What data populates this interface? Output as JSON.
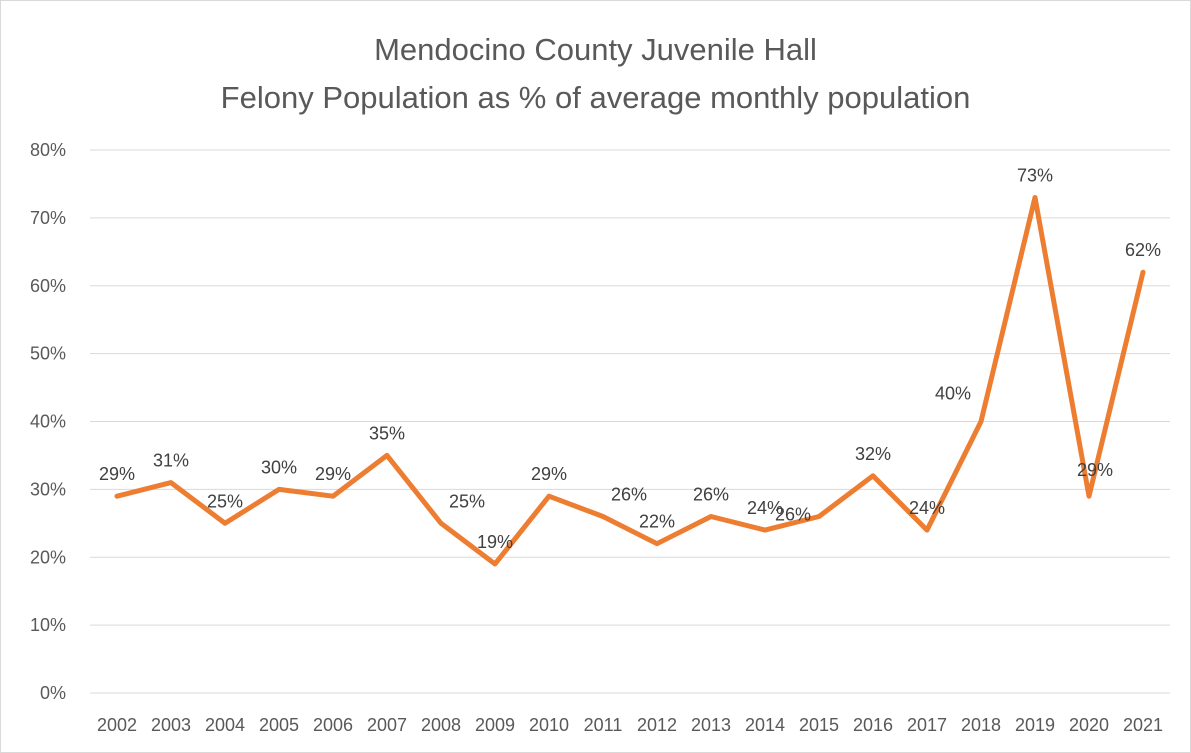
{
  "chart_data": {
    "type": "line",
    "title_lines": [
      "Mendocino County Juvenile Hall",
      "Felony Population as % of average monthly population"
    ],
    "categories": [
      "2002",
      "2003",
      "2004",
      "2005",
      "2006",
      "2007",
      "2008",
      "2009",
      "2010",
      "2011",
      "2012",
      "2013",
      "2014",
      "2015",
      "2016",
      "2017",
      "2018",
      "2019",
      "2020",
      "2021"
    ],
    "series": [
      {
        "values": [
          29,
          31,
          25,
          30,
          29,
          35,
          25,
          19,
          29,
          26,
          22,
          26,
          24,
          26,
          32,
          24,
          40,
          73,
          29,
          62
        ],
        "data_labels": [
          "29%",
          "31%",
          "25%",
          "30%",
          "29%",
          "35%",
          "25%",
          "19%",
          "29%",
          "26%",
          "22%",
          "26%",
          "24%",
          "26%",
          "32%",
          "24%",
          "40%",
          "73%",
          "29%",
          "62%"
        ],
        "color": "#ed7d31"
      }
    ],
    "y_ticks": [
      0,
      10,
      20,
      30,
      40,
      50,
      60,
      70,
      80
    ],
    "y_tick_labels": [
      "0%",
      "10%",
      "20%",
      "30%",
      "40%",
      "50%",
      "60%",
      "70%",
      "80%"
    ],
    "ylim": [
      0,
      80
    ],
    "y_unit": "%",
    "grid": true,
    "legend": "none",
    "gridline_color": "#d9d9d9",
    "text_color": "#595959"
  }
}
